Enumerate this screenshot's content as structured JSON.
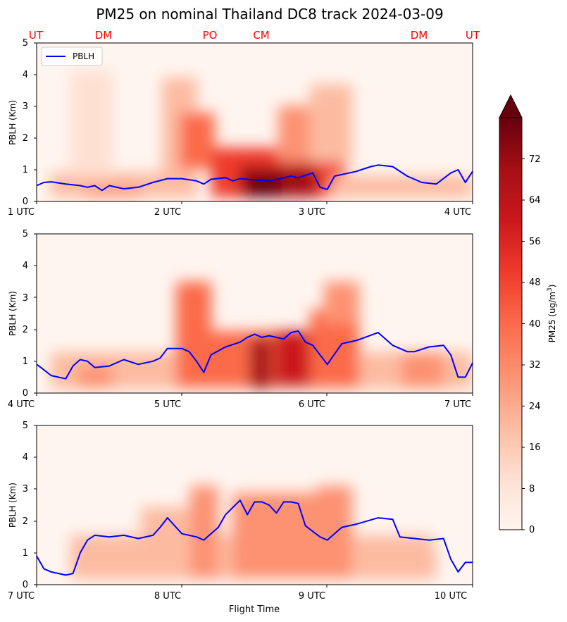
{
  "title": "PM25 on nominal Thailand DC8 track 2024-03-09",
  "xlabel": "Flight Time",
  "ylabel": "PBLH (Km)",
  "legend_label": "PBLH",
  "colorbar": {
    "label_main": "PM25 (ug/m",
    "label_sup": "3",
    "label_close": ")",
    "ticks": [
      "0",
      "8",
      "16",
      "24",
      "32",
      "40",
      "48",
      "56",
      "64",
      "72"
    ],
    "range": [
      0,
      80
    ],
    "extend": "max"
  },
  "site_labels": [
    "UT",
    "DM",
    "PO",
    "CM",
    "DM",
    "UT"
  ],
  "colors": {
    "pblh_line": "#0000ff",
    "site_labels": "#ff0000",
    "cmap_low": "#fff5f0",
    "cmap_high": "#67000d"
  },
  "chart_data": [
    {
      "type": "heatmap",
      "panel": "1-4 UTC",
      "x_tick_labels": [
        "1 UTC",
        "2 UTC",
        "3 UTC",
        "4 UTC"
      ],
      "x_range_utc_hours": [
        1,
        4
      ],
      "ylim": [
        0,
        5
      ],
      "y_tick_labels": [
        "0",
        "1",
        "2",
        "3",
        "4",
        "5"
      ],
      "series": [
        {
          "name": "PBLH",
          "x": [
            1.0,
            1.05,
            1.1,
            1.2,
            1.3,
            1.35,
            1.4,
            1.45,
            1.5,
            1.6,
            1.7,
            1.8,
            1.9,
            2.0,
            2.1,
            2.15,
            2.2,
            2.3,
            2.35,
            2.4,
            2.5,
            2.6,
            2.7,
            2.75,
            2.8,
            2.9,
            2.95,
            3.0,
            3.05,
            3.2,
            3.3,
            3.35,
            3.45,
            3.55,
            3.65,
            3.75,
            3.85,
            3.9,
            3.95,
            4.0
          ],
          "y": [
            0.5,
            0.6,
            0.62,
            0.55,
            0.5,
            0.45,
            0.5,
            0.35,
            0.5,
            0.4,
            0.45,
            0.6,
            0.72,
            0.72,
            0.65,
            0.55,
            0.7,
            0.75,
            0.65,
            0.72,
            0.68,
            0.65,
            0.75,
            0.8,
            0.75,
            0.9,
            0.45,
            0.38,
            0.8,
            0.95,
            1.1,
            1.15,
            1.1,
            0.8,
            0.6,
            0.55,
            0.9,
            1.0,
            0.6,
            0.95
          ]
        }
      ],
      "pm25_hotspots": [
        {
          "x_hour": 1.3,
          "top_km": 0.5,
          "pm25": 28
        },
        {
          "x_hour": 2.1,
          "top_km": 3.5,
          "pm25": 38
        },
        {
          "x_hour": 2.4,
          "top_km": 2.0,
          "pm25": 45
        },
        {
          "x_hour": 2.6,
          "top_km": 1.0,
          "pm25": 78
        },
        {
          "x_hour": 2.85,
          "top_km": 2.5,
          "pm25": 50
        },
        {
          "x_hour": 3.1,
          "top_km": 2.8,
          "pm25": 35
        }
      ]
    },
    {
      "type": "heatmap",
      "panel": "4-7 UTC",
      "x_tick_labels": [
        "4 UTC",
        "5 UTC",
        "6 UTC",
        "7 UTC"
      ],
      "x_range_utc_hours": [
        4,
        7
      ],
      "ylim": [
        0,
        5
      ],
      "y_tick_labels": [
        "0",
        "1",
        "2",
        "3",
        "4",
        "5"
      ],
      "series": [
        {
          "name": "PBLH",
          "x": [
            4.0,
            4.03,
            4.1,
            4.2,
            4.25,
            4.3,
            4.35,
            4.4,
            4.5,
            4.6,
            4.7,
            4.8,
            4.85,
            4.9,
            5.0,
            5.05,
            5.1,
            5.15,
            5.2,
            5.3,
            5.4,
            5.45,
            5.5,
            5.55,
            5.6,
            5.7,
            5.75,
            5.8,
            5.85,
            5.9,
            6.0,
            6.1,
            6.2,
            6.35,
            6.45,
            6.55,
            6.6,
            6.7,
            6.8,
            6.85,
            6.9,
            6.95,
            7.0
          ],
          "y": [
            0.9,
            0.8,
            0.55,
            0.45,
            0.85,
            1.05,
            1.0,
            0.8,
            0.85,
            1.05,
            0.9,
            1.0,
            1.1,
            1.4,
            1.4,
            1.3,
            1.0,
            0.65,
            1.2,
            1.45,
            1.6,
            1.75,
            1.85,
            1.75,
            1.8,
            1.7,
            1.9,
            1.95,
            1.6,
            1.5,
            0.9,
            1.55,
            1.65,
            1.9,
            1.5,
            1.3,
            1.3,
            1.45,
            1.5,
            1.2,
            0.5,
            0.5,
            0.95
          ]
        }
      ],
      "pm25_hotspots": [
        {
          "x_hour": 5.1,
          "top_km": 3.2,
          "pm25": 40
        },
        {
          "x_hour": 5.55,
          "top_km": 2.0,
          "pm25": 60
        },
        {
          "x_hour": 5.75,
          "top_km": 2.2,
          "pm25": 50
        },
        {
          "x_hour": 6.1,
          "top_km": 3.0,
          "pm25": 40
        }
      ]
    },
    {
      "type": "heatmap",
      "panel": "7-10 UTC",
      "x_tick_labels": [
        "7 UTC",
        "8 UTC",
        "9 UTC",
        "10 UTC"
      ],
      "x_range_utc_hours": [
        7,
        10
      ],
      "ylim": [
        0,
        5
      ],
      "y_tick_labels": [
        "0",
        "1",
        "2",
        "3",
        "4",
        "5"
      ],
      "series": [
        {
          "name": "PBLH",
          "x": [
            7.0,
            7.05,
            7.1,
            7.2,
            7.25,
            7.3,
            7.35,
            7.4,
            7.5,
            7.6,
            7.7,
            7.8,
            7.85,
            7.9,
            8.0,
            8.1,
            8.15,
            8.25,
            8.3,
            8.4,
            8.45,
            8.5,
            8.55,
            8.6,
            8.65,
            8.7,
            8.75,
            8.8,
            8.85,
            8.95,
            9.0,
            9.1,
            9.2,
            9.35,
            9.45,
            9.5,
            9.6,
            9.7,
            9.8,
            9.85,
            9.9,
            9.95,
            10.0
          ],
          "y": [
            0.9,
            0.5,
            0.4,
            0.3,
            0.35,
            1.0,
            1.4,
            1.55,
            1.5,
            1.55,
            1.45,
            1.55,
            1.8,
            2.1,
            1.6,
            1.5,
            1.4,
            1.8,
            2.2,
            2.65,
            2.2,
            2.6,
            2.6,
            2.5,
            2.25,
            2.6,
            2.6,
            2.55,
            1.85,
            1.5,
            1.4,
            1.8,
            1.9,
            2.1,
            2.05,
            1.5,
            1.45,
            1.4,
            1.45,
            0.8,
            0.4,
            0.7,
            0.7
          ]
        }
      ],
      "pm25_hotspots": [
        {
          "x_hour": 7.8,
          "top_km": 2.5,
          "pm25": 30
        },
        {
          "x_hour": 8.15,
          "top_km": 3.0,
          "pm25": 34
        },
        {
          "x_hour": 8.45,
          "top_km": 2.8,
          "pm25": 38
        },
        {
          "x_hour": 8.75,
          "top_km": 2.8,
          "pm25": 36
        },
        {
          "x_hour": 9.05,
          "top_km": 3.0,
          "pm25": 36
        }
      ]
    }
  ]
}
